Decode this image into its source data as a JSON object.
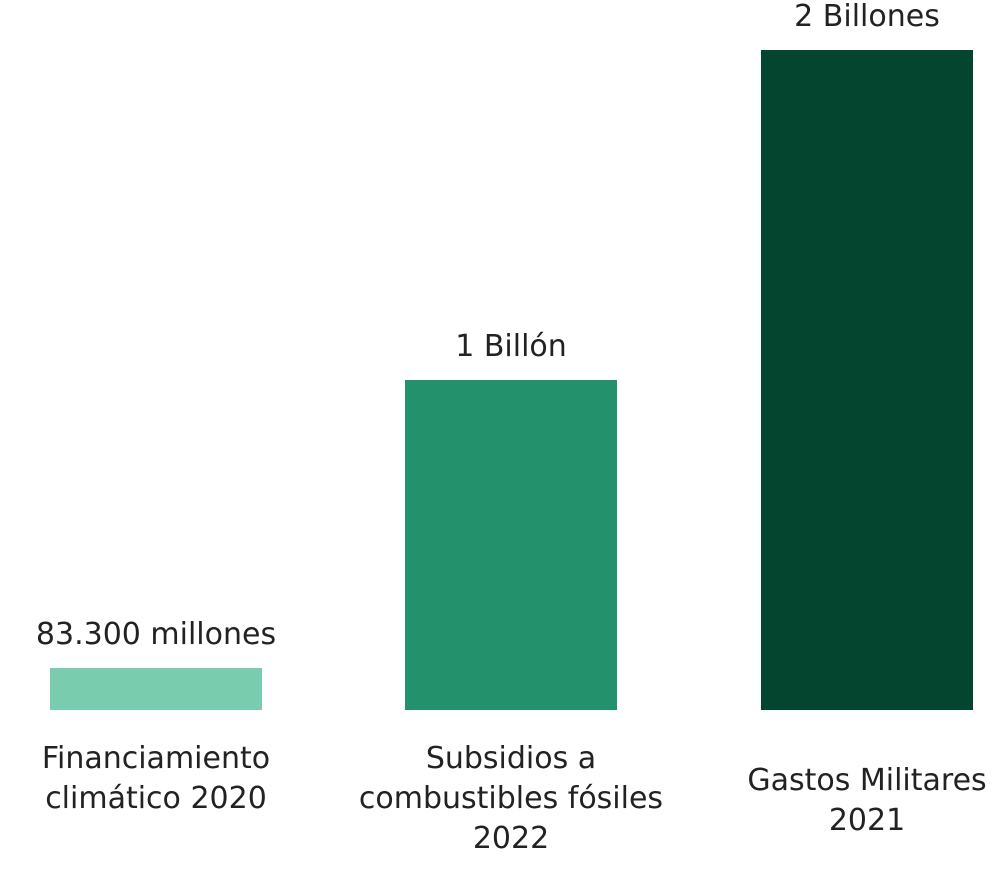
{
  "chart_data": {
    "type": "bar",
    "title": "",
    "xlabel": "",
    "ylabel": "",
    "categories": [
      [
        "Financiamiento",
        "climático 2020"
      ],
      [
        "Subsidios a",
        "combustibles fósiles",
        "2022"
      ],
      [
        "Gastos Militares",
        "2021"
      ]
    ],
    "values": [
      83300000000,
      1000000000000,
      2000000000000
    ],
    "value_labels": [
      "83.300 millones",
      "1 Billón",
      "2 Billones"
    ],
    "colors": [
      "#7ACCAF",
      "#23916C",
      "#03452F"
    ],
    "ylim": [
      0,
      2000000000000
    ],
    "grid": false,
    "legend": "none"
  }
}
